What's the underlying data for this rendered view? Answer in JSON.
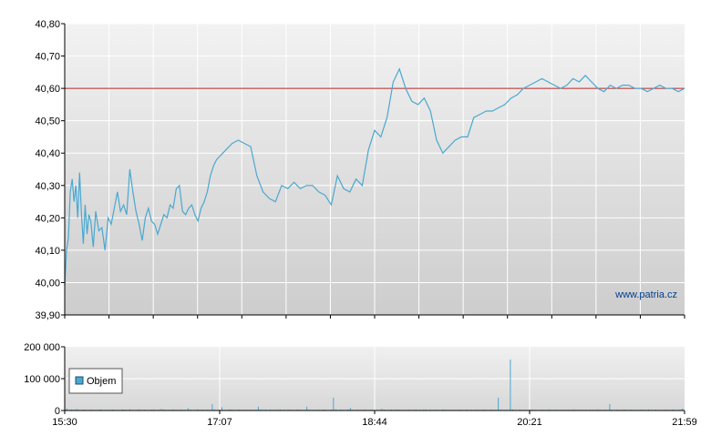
{
  "chart_data": [
    {
      "type": "line",
      "ylim": [
        39.9,
        40.8
      ],
      "y_ticks": [
        "39,90",
        "40,00",
        "40,10",
        "40,20",
        "40,30",
        "40,40",
        "40,50",
        "40,60",
        "40,70",
        "40,80"
      ],
      "reference_line": 40.6,
      "reference_color": "#b22222",
      "line_color": "#4aa8d0",
      "grid": true,
      "watermark": "www.patria.cz",
      "series": [
        {
          "x": [
            0.0,
            0.3,
            0.6,
            0.9,
            1.2,
            1.5,
            1.8,
            2.1,
            2.4,
            2.7,
            3.0,
            3.3,
            3.6,
            3.9,
            4.2,
            4.6,
            5.0,
            5.5,
            6.0,
            6.5,
            7.0,
            7.5,
            8.0,
            8.5,
            9.0,
            9.5,
            10.0,
            10.5,
            11.0,
            11.5,
            12.0,
            12.5,
            13.0,
            13.5,
            14.0,
            14.5,
            15.0,
            15.5,
            16.0,
            16.5,
            17.0,
            17.5,
            18.0,
            18.5,
            19.0,
            19.5,
            20.0,
            20.5,
            21.0,
            21.5,
            22.0,
            22.5,
            23.0,
            23.5,
            24.0,
            24.5,
            25.0,
            26.0,
            27.0,
            28.0,
            29.0,
            30.0,
            31.0,
            32.0,
            33.0,
            34.0,
            35.0,
            36.0,
            37.0,
            38.0,
            39.0,
            40.0,
            41.0,
            42.0,
            43.0,
            44.0,
            45.0,
            46.0,
            47.0,
            48.0,
            49.0,
            50.0,
            51.0,
            52.0,
            53.0,
            54.0,
            55.0,
            56.0,
            57.0,
            58.0,
            59.0,
            60.0,
            61.0,
            62.0,
            63.0,
            64.0,
            65.0,
            66.0,
            67.0,
            68.0,
            69.0,
            70.0,
            71.0,
            72.0,
            73.0,
            74.0,
            75.0,
            76.0,
            77.0,
            78.0,
            79.0,
            80.0,
            81.0,
            82.0,
            83.0,
            84.0,
            85.0,
            86.0,
            87.0,
            88.0,
            89.0,
            90.0,
            91.0,
            92.0,
            93.0,
            94.0,
            95.0,
            96.0,
            97.0,
            98.0,
            99.0,
            100.0
          ],
          "y": [
            39.99,
            40.1,
            40.14,
            40.28,
            40.32,
            40.25,
            40.3,
            40.2,
            40.34,
            40.21,
            40.12,
            40.24,
            40.15,
            40.21,
            40.19,
            40.11,
            40.22,
            40.16,
            40.17,
            40.1,
            40.2,
            40.18,
            40.23,
            40.28,
            40.22,
            40.24,
            40.21,
            40.35,
            40.28,
            40.22,
            40.18,
            40.13,
            40.2,
            40.23,
            40.19,
            40.18,
            40.15,
            40.18,
            40.21,
            40.2,
            40.24,
            40.23,
            40.29,
            40.3,
            40.22,
            40.21,
            40.23,
            40.24,
            40.21,
            40.19,
            40.23,
            40.25,
            40.28,
            40.33,
            40.36,
            40.38,
            40.39,
            40.41,
            40.43,
            40.44,
            40.43,
            40.42,
            40.33,
            40.28,
            40.26,
            40.25,
            40.3,
            40.29,
            40.31,
            40.29,
            40.3,
            40.3,
            40.28,
            40.27,
            40.24,
            40.33,
            40.29,
            40.28,
            40.32,
            40.3,
            40.41,
            40.47,
            40.45,
            40.51,
            40.62,
            40.66,
            40.6,
            40.56,
            40.55,
            40.57,
            40.53,
            40.44,
            40.4,
            40.42,
            40.44,
            40.45,
            40.45,
            40.51,
            40.52,
            40.53,
            40.53,
            40.54,
            40.55,
            40.57,
            40.58,
            40.6,
            40.61,
            40.62,
            40.63,
            40.62,
            40.61,
            40.6,
            40.61,
            40.63,
            40.62,
            40.64,
            40.62,
            40.6,
            40.59,
            40.61,
            40.6,
            40.61,
            40.61,
            40.6,
            40.6,
            40.59,
            40.6,
            40.61,
            40.6,
            40.6,
            40.59,
            40.6
          ]
        }
      ]
    },
    {
      "type": "bar",
      "ylim": [
        0,
        200000
      ],
      "y_ticks": [
        "0",
        "100 000",
        "200 000"
      ],
      "x_ticks": [
        "15:30",
        "17:07",
        "18:44",
        "20:21",
        "21:59"
      ],
      "legend_entry": "Objem",
      "bar_color": "#4aa8d0",
      "grid": true,
      "values": [
        6000,
        2000,
        3000,
        2500,
        4500,
        2000,
        1500,
        3000,
        2000,
        1800,
        2500,
        1500,
        1000,
        2200,
        3500,
        1500,
        1200,
        1800,
        2000,
        2800,
        1500,
        1200,
        1000,
        3000,
        2500,
        1500,
        4000,
        1500,
        1000,
        2000,
        3500,
        1500,
        2000,
        1500,
        1200,
        2500,
        3000,
        1500,
        2200,
        5000,
        3000,
        1500,
        1800,
        2500,
        3500,
        2000,
        1500,
        2800,
        1800,
        2000,
        7000,
        2500,
        1500,
        1800,
        4000,
        2000,
        3000,
        1500,
        2500,
        2000,
        20000,
        3000,
        1500,
        2500,
        10000,
        2000,
        1500,
        3500,
        2800,
        1200,
        1800,
        3000,
        2000,
        1500,
        2500,
        1800,
        2000,
        1500,
        2200,
        12000,
        3000,
        1800,
        2500,
        1500,
        3000,
        2000,
        1800,
        2500,
        3500,
        1500,
        2000,
        1500,
        2800,
        2000,
        1800,
        3000,
        2500,
        1500,
        2000,
        12000,
        2500,
        1500,
        2000,
        1800,
        2500,
        1500,
        3000,
        2000,
        1500,
        2500,
        40000,
        3000,
        1500,
        2500,
        2000,
        1800,
        3000,
        8000,
        2000,
        1500,
        2500,
        1800,
        2000,
        3000,
        1500,
        2200,
        2500,
        1500,
        2000,
        1800,
        5000,
        2500,
        1500,
        2000,
        2800,
        1500,
        3000,
        2500,
        1800,
        2000,
        1500,
        2500,
        2000,
        1800,
        2800,
        1500,
        2000,
        2500,
        3000,
        1500,
        2000,
        1800,
        2500,
        2000,
        1500,
        3000,
        2500,
        1800,
        2000,
        1500,
        2200,
        1800,
        2500,
        2000,
        1500,
        2800,
        1800,
        2000,
        1500,
        2500,
        2000,
        1800,
        3000,
        2000,
        1500,
        2500,
        1800,
        2000,
        40000,
        2500,
        1500,
        2000,
        1800,
        160000,
        3000,
        2000,
        1500,
        2500,
        1800,
        2000,
        1500,
        2500,
        3000,
        2000,
        1800,
        1500,
        2500,
        2000,
        1800,
        3000,
        2000,
        1500,
        2500,
        1800,
        2000,
        1500,
        2500,
        2000,
        1800,
        3000,
        2000,
        1500,
        2500,
        1800,
        2000,
        1500,
        2500,
        2000,
        1800,
        3000,
        2000,
        1500,
        2500,
        1800,
        20000,
        2000,
        1500,
        2500,
        2000,
        1800,
        3000,
        2000,
        1500,
        2500,
        1800,
        2000,
        1500,
        2500,
        2000,
        1800,
        3000,
        2000,
        1500,
        2500,
        1800,
        2000,
        1500,
        2500,
        2000,
        1800,
        3000,
        2000,
        1500,
        2500,
        6000
      ]
    }
  ]
}
